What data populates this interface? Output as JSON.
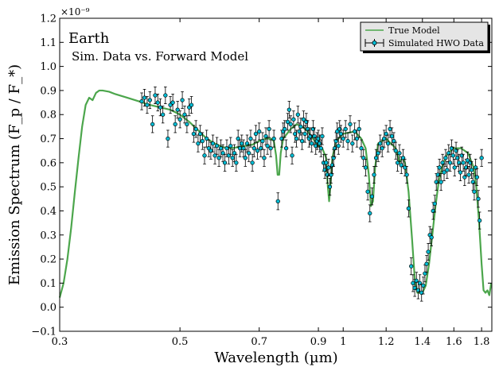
{
  "chart_data": {
    "type": "scatter",
    "title": "",
    "annotations": {
      "line1": "Earth",
      "line2": "Sim. Data vs. Forward Model"
    },
    "xlabel": "Wavelength (µm)",
    "ylabel": "Emission Spectrum (F_p / F_*)",
    "y_multiplier": "×10⁻⁹",
    "xscale": "log",
    "xlim": [
      0.3,
      1.88
    ],
    "ylim": [
      -0.1,
      1.2
    ],
    "grid": false,
    "legend_position": "top-right",
    "x_ticks": [
      0.3,
      0.5,
      0.7,
      0.9,
      1.0,
      1.2,
      1.4,
      1.6,
      1.8
    ],
    "x_tick_labels": [
      "0.3",
      "0.5",
      "0.7",
      "0.9",
      "1",
      "1.2",
      "1.4",
      "1.6",
      "1.8"
    ],
    "y_ticks": [
      -0.1,
      0.0,
      0.1,
      0.2,
      0.3,
      0.4,
      0.5,
      0.6,
      0.7,
      0.8,
      0.9,
      1.0,
      1.1,
      1.2
    ],
    "y_tick_labels": [
      "−0.1",
      "0.0",
      "0.1",
      "0.2",
      "0.3",
      "0.4",
      "0.5",
      "0.6",
      "0.7",
      "0.8",
      "0.9",
      "1.0",
      "1.1",
      "1.2"
    ],
    "series": [
      {
        "name": "True Model",
        "kind": "line",
        "color": "#4ca64c",
        "points": [
          [
            0.3,
            0.04
          ],
          [
            0.305,
            0.1
          ],
          [
            0.31,
            0.2
          ],
          [
            0.315,
            0.33
          ],
          [
            0.32,
            0.48
          ],
          [
            0.325,
            0.62
          ],
          [
            0.33,
            0.75
          ],
          [
            0.335,
            0.84
          ],
          [
            0.34,
            0.87
          ],
          [
            0.345,
            0.86
          ],
          [
            0.35,
            0.89
          ],
          [
            0.355,
            0.9
          ],
          [
            0.36,
            0.9
          ],
          [
            0.37,
            0.895
          ],
          [
            0.38,
            0.885
          ],
          [
            0.4,
            0.87
          ],
          [
            0.42,
            0.855
          ],
          [
            0.44,
            0.84
          ],
          [
            0.46,
            0.83
          ],
          [
            0.48,
            0.82
          ],
          [
            0.5,
            0.8
          ],
          [
            0.52,
            0.77
          ],
          [
            0.54,
            0.735
          ],
          [
            0.56,
            0.7
          ],
          [
            0.58,
            0.68
          ],
          [
            0.6,
            0.665
          ],
          [
            0.62,
            0.66
          ],
          [
            0.64,
            0.665
          ],
          [
            0.66,
            0.67
          ],
          [
            0.68,
            0.675
          ],
          [
            0.7,
            0.69
          ],
          [
            0.72,
            0.7
          ],
          [
            0.735,
            0.7
          ],
          [
            0.745,
            0.69
          ],
          [
            0.752,
            0.63
          ],
          [
            0.757,
            0.55
          ],
          [
            0.762,
            0.55
          ],
          [
            0.767,
            0.64
          ],
          [
            0.775,
            0.7
          ],
          [
            0.8,
            0.74
          ],
          [
            0.82,
            0.76
          ],
          [
            0.84,
            0.75
          ],
          [
            0.86,
            0.73
          ],
          [
            0.88,
            0.7
          ],
          [
            0.9,
            0.67
          ],
          [
            0.915,
            0.66
          ],
          [
            0.93,
            0.62
          ],
          [
            0.937,
            0.5
          ],
          [
            0.942,
            0.44
          ],
          [
            0.947,
            0.5
          ],
          [
            0.955,
            0.62
          ],
          [
            0.97,
            0.69
          ],
          [
            1.0,
            0.72
          ],
          [
            1.05,
            0.73
          ],
          [
            1.08,
            0.7
          ],
          [
            1.1,
            0.66
          ],
          [
            1.115,
            0.55
          ],
          [
            1.125,
            0.42
          ],
          [
            1.135,
            0.44
          ],
          [
            1.145,
            0.58
          ],
          [
            1.16,
            0.68
          ],
          [
            1.2,
            0.7
          ],
          [
            1.25,
            0.66
          ],
          [
            1.27,
            0.6
          ],
          [
            1.285,
            0.62
          ],
          [
            1.3,
            0.6
          ],
          [
            1.32,
            0.48
          ],
          [
            1.34,
            0.28
          ],
          [
            1.355,
            0.12
          ],
          [
            1.37,
            0.06
          ],
          [
            1.4,
            0.06
          ],
          [
            1.42,
            0.09
          ],
          [
            1.44,
            0.18
          ],
          [
            1.46,
            0.3
          ],
          [
            1.48,
            0.42
          ],
          [
            1.5,
            0.52
          ],
          [
            1.53,
            0.6
          ],
          [
            1.56,
            0.64
          ],
          [
            1.6,
            0.66
          ],
          [
            1.65,
            0.66
          ],
          [
            1.7,
            0.64
          ],
          [
            1.74,
            0.58
          ],
          [
            1.76,
            0.5
          ],
          [
            1.78,
            0.36
          ],
          [
            1.8,
            0.18
          ],
          [
            1.815,
            0.07
          ],
          [
            1.83,
            0.06
          ],
          [
            1.845,
            0.07
          ],
          [
            1.86,
            0.05
          ],
          [
            1.875,
            0.1
          ]
        ]
      },
      {
        "name": "Simulated HWO Data",
        "kind": "errorbar",
        "color": "#00bcd4",
        "edge_color": "#000000",
        "yerr": 0.035,
        "points": [
          [
            0.425,
            0.855
          ],
          [
            0.43,
            0.87
          ],
          [
            0.435,
            0.84
          ],
          [
            0.44,
            0.86
          ],
          [
            0.445,
            0.76
          ],
          [
            0.45,
            0.88
          ],
          [
            0.455,
            0.85
          ],
          [
            0.46,
            0.83
          ],
          [
            0.465,
            0.8
          ],
          [
            0.47,
            0.88
          ],
          [
            0.475,
            0.7
          ],
          [
            0.48,
            0.84
          ],
          [
            0.485,
            0.85
          ],
          [
            0.49,
            0.76
          ],
          [
            0.495,
            0.82
          ],
          [
            0.5,
            0.78
          ],
          [
            0.505,
            0.86
          ],
          [
            0.51,
            0.8
          ],
          [
            0.515,
            0.76
          ],
          [
            0.52,
            0.83
          ],
          [
            0.525,
            0.84
          ],
          [
            0.53,
            0.72
          ],
          [
            0.535,
            0.74
          ],
          [
            0.54,
            0.68
          ],
          [
            0.545,
            0.72
          ],
          [
            0.55,
            0.69
          ],
          [
            0.555,
            0.63
          ],
          [
            0.56,
            0.7
          ],
          [
            0.565,
            0.66
          ],
          [
            0.57,
            0.65
          ],
          [
            0.575,
            0.68
          ],
          [
            0.58,
            0.63
          ],
          [
            0.585,
            0.67
          ],
          [
            0.59,
            0.62
          ],
          [
            0.595,
            0.66
          ],
          [
            0.6,
            0.64
          ],
          [
            0.605,
            0.6
          ],
          [
            0.61,
            0.66
          ],
          [
            0.615,
            0.63
          ],
          [
            0.62,
            0.67
          ],
          [
            0.625,
            0.62
          ],
          [
            0.63,
            0.64
          ],
          [
            0.635,
            0.6
          ],
          [
            0.64,
            0.7
          ],
          [
            0.645,
            0.66
          ],
          [
            0.65,
            0.68
          ],
          [
            0.655,
            0.66
          ],
          [
            0.66,
            0.62
          ],
          [
            0.665,
            0.68
          ],
          [
            0.67,
            0.64
          ],
          [
            0.675,
            0.7
          ],
          [
            0.68,
            0.6
          ],
          [
            0.685,
            0.66
          ],
          [
            0.69,
            0.72
          ],
          [
            0.695,
            0.65
          ],
          [
            0.7,
            0.73
          ],
          [
            0.705,
            0.66
          ],
          [
            0.71,
            0.69
          ],
          [
            0.715,
            0.62
          ],
          [
            0.72,
            0.71
          ],
          [
            0.725,
            0.67
          ],
          [
            0.73,
            0.74
          ],
          [
            0.735,
            0.66
          ],
          [
            0.745,
            0.7
          ],
          [
            0.758,
            0.44
          ],
          [
            0.77,
            0.7
          ],
          [
            0.775,
            0.73
          ],
          [
            0.78,
            0.74
          ],
          [
            0.785,
            0.66
          ],
          [
            0.79,
            0.77
          ],
          [
            0.795,
            0.82
          ],
          [
            0.8,
            0.76
          ],
          [
            0.805,
            0.63
          ],
          [
            0.81,
            0.78
          ],
          [
            0.815,
            0.72
          ],
          [
            0.82,
            0.7
          ],
          [
            0.825,
            0.8
          ],
          [
            0.83,
            0.73
          ],
          [
            0.835,
            0.75
          ],
          [
            0.84,
            0.69
          ],
          [
            0.845,
            0.78
          ],
          [
            0.85,
            0.72
          ],
          [
            0.855,
            0.77
          ],
          [
            0.86,
            0.74
          ],
          [
            0.865,
            0.7
          ],
          [
            0.87,
            0.71
          ],
          [
            0.875,
            0.68
          ],
          [
            0.88,
            0.74
          ],
          [
            0.885,
            0.71
          ],
          [
            0.89,
            0.67
          ],
          [
            0.895,
            0.69
          ],
          [
            0.9,
            0.7
          ],
          [
            0.905,
            0.68
          ],
          [
            0.91,
            0.66
          ],
          [
            0.915,
            0.71
          ],
          [
            0.92,
            0.6
          ],
          [
            0.925,
            0.57
          ],
          [
            0.93,
            0.6
          ],
          [
            0.935,
            0.55
          ],
          [
            0.94,
            0.58
          ],
          [
            0.945,
            0.5
          ],
          [
            0.95,
            0.55
          ],
          [
            0.955,
            0.59
          ],
          [
            0.96,
            0.62
          ],
          [
            0.965,
            0.66
          ],
          [
            0.97,
            0.69
          ],
          [
            0.975,
            0.73
          ],
          [
            0.98,
            0.67
          ],
          [
            0.985,
            0.74
          ],
          [
            0.99,
            0.72
          ],
          [
            1.0,
            0.7
          ],
          [
            1.01,
            0.74
          ],
          [
            1.02,
            0.69
          ],
          [
            1.03,
            0.76
          ],
          [
            1.04,
            0.68
          ],
          [
            1.05,
            0.73
          ],
          [
            1.06,
            0.7
          ],
          [
            1.07,
            0.74
          ],
          [
            1.08,
            0.66
          ],
          [
            1.09,
            0.62
          ],
          [
            1.1,
            0.58
          ],
          [
            1.11,
            0.48
          ],
          [
            1.12,
            0.39
          ],
          [
            1.13,
            0.46
          ],
          [
            1.14,
            0.55
          ],
          [
            1.15,
            0.62
          ],
          [
            1.16,
            0.64
          ],
          [
            1.17,
            0.68
          ],
          [
            1.18,
            0.66
          ],
          [
            1.19,
            0.7
          ],
          [
            1.2,
            0.72
          ],
          [
            1.21,
            0.68
          ],
          [
            1.22,
            0.74
          ],
          [
            1.23,
            0.71
          ],
          [
            1.24,
            0.69
          ],
          [
            1.25,
            0.65
          ],
          [
            1.26,
            0.6
          ],
          [
            1.27,
            0.64
          ],
          [
            1.28,
            0.59
          ],
          [
            1.29,
            0.62
          ],
          [
            1.3,
            0.58
          ],
          [
            1.31,
            0.55
          ],
          [
            1.32,
            0.41
          ],
          [
            1.335,
            0.17
          ],
          [
            1.345,
            0.1
          ],
          [
            1.355,
            0.08
          ],
          [
            1.365,
            0.11
          ],
          [
            1.375,
            0.07
          ],
          [
            1.385,
            0.1
          ],
          [
            1.395,
            0.06
          ],
          [
            1.405,
            0.09
          ],
          [
            1.415,
            0.14
          ],
          [
            1.425,
            0.18
          ],
          [
            1.435,
            0.23
          ],
          [
            1.445,
            0.3
          ],
          [
            1.455,
            0.29
          ],
          [
            1.465,
            0.4
          ],
          [
            1.475,
            0.43
          ],
          [
            1.485,
            0.52
          ],
          [
            1.495,
            0.55
          ],
          [
            1.505,
            0.58
          ],
          [
            1.515,
            0.52
          ],
          [
            1.525,
            0.6
          ],
          [
            1.535,
            0.56
          ],
          [
            1.545,
            0.62
          ],
          [
            1.555,
            0.57
          ],
          [
            1.565,
            0.64
          ],
          [
            1.575,
            0.6
          ],
          [
            1.585,
            0.66
          ],
          [
            1.595,
            0.63
          ],
          [
            1.605,
            0.58
          ],
          [
            1.615,
            0.65
          ],
          [
            1.625,
            0.62
          ],
          [
            1.635,
            0.6
          ],
          [
            1.645,
            0.56
          ],
          [
            1.655,
            0.63
          ],
          [
            1.665,
            0.6
          ],
          [
            1.675,
            0.54
          ],
          [
            1.685,
            0.58
          ],
          [
            1.695,
            0.61
          ],
          [
            1.705,
            0.55
          ],
          [
            1.715,
            0.6
          ],
          [
            1.725,
            0.57
          ],
          [
            1.735,
            0.52
          ],
          [
            1.745,
            0.48
          ],
          [
            1.755,
            0.58
          ],
          [
            1.765,
            0.54
          ],
          [
            1.775,
            0.45
          ],
          [
            1.785,
            0.36
          ],
          [
            1.8,
            0.62
          ]
        ]
      }
    ]
  }
}
